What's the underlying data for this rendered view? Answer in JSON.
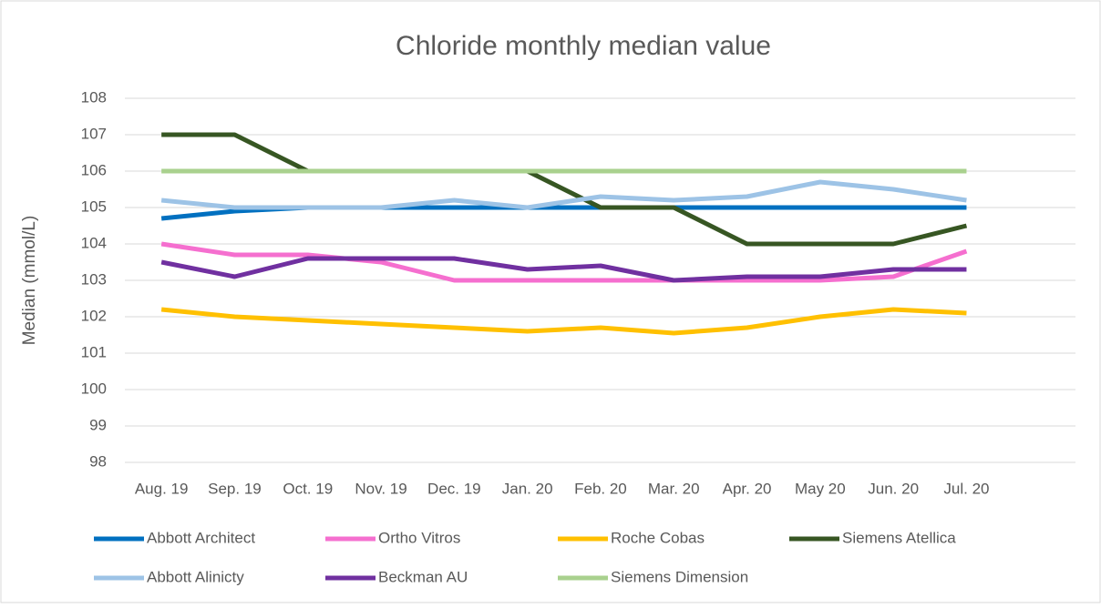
{
  "chart_data": {
    "type": "line",
    "title": "Chloride monthly median value",
    "y_label": "Median (mmol/L)",
    "categories": [
      "Aug. 19",
      "Sep. 19",
      "Oct. 19",
      "Nov. 19",
      "Dec. 19",
      "Jan. 20",
      "Feb. 20",
      "Mar. 20",
      "Apr. 20",
      "May 20",
      "Jun. 20",
      "Jul. 20"
    ],
    "series": [
      {
        "name": "Abbott Architect",
        "color": "#0070c0",
        "values": [
          104.7,
          104.9,
          105,
          105,
          105,
          105,
          105,
          105,
          105,
          105,
          105,
          105
        ]
      },
      {
        "name": "Ortho Vitros",
        "color": "#f56fcf",
        "values": [
          104,
          103.7,
          103.7,
          103.5,
          103,
          103,
          103,
          103,
          103,
          103,
          103.1,
          103.8
        ]
      },
      {
        "name": "Roche Cobas",
        "color": "#ffc000",
        "values": [
          102.2,
          102,
          101.9,
          101.8,
          101.7,
          101.6,
          101.7,
          101.55,
          101.7,
          102,
          102.2,
          102.1
        ]
      },
      {
        "name": "Siemens Atellica",
        "color": "#375623",
        "values": [
          107,
          107,
          106,
          106,
          106,
          106,
          105,
          105,
          104,
          104,
          104,
          104.5
        ]
      },
      {
        "name": "Abbott Alinicty",
        "color": "#9dc3e6",
        "values": [
          105.2,
          105,
          105,
          105,
          105.2,
          105,
          105.3,
          105.2,
          105.3,
          105.7,
          105.5,
          105.2
        ]
      },
      {
        "name": "Beckman AU",
        "color": "#7030a0",
        "values": [
          103.5,
          103.1,
          103.6,
          103.6,
          103.6,
          103.3,
          103.4,
          103,
          103.1,
          103.1,
          103.3,
          103.3
        ]
      },
      {
        "name": "Siemens Dimension",
        "color": "#a9d18e",
        "values": [
          106,
          106,
          106,
          106,
          106,
          106,
          106,
          106,
          106,
          106,
          106,
          106
        ]
      }
    ],
    "ylim": [
      98,
      108
    ],
    "yticks": [
      98,
      99,
      100,
      101,
      102,
      103,
      104,
      105,
      106,
      107,
      108
    ],
    "grid": true,
    "legend": "bottom"
  }
}
